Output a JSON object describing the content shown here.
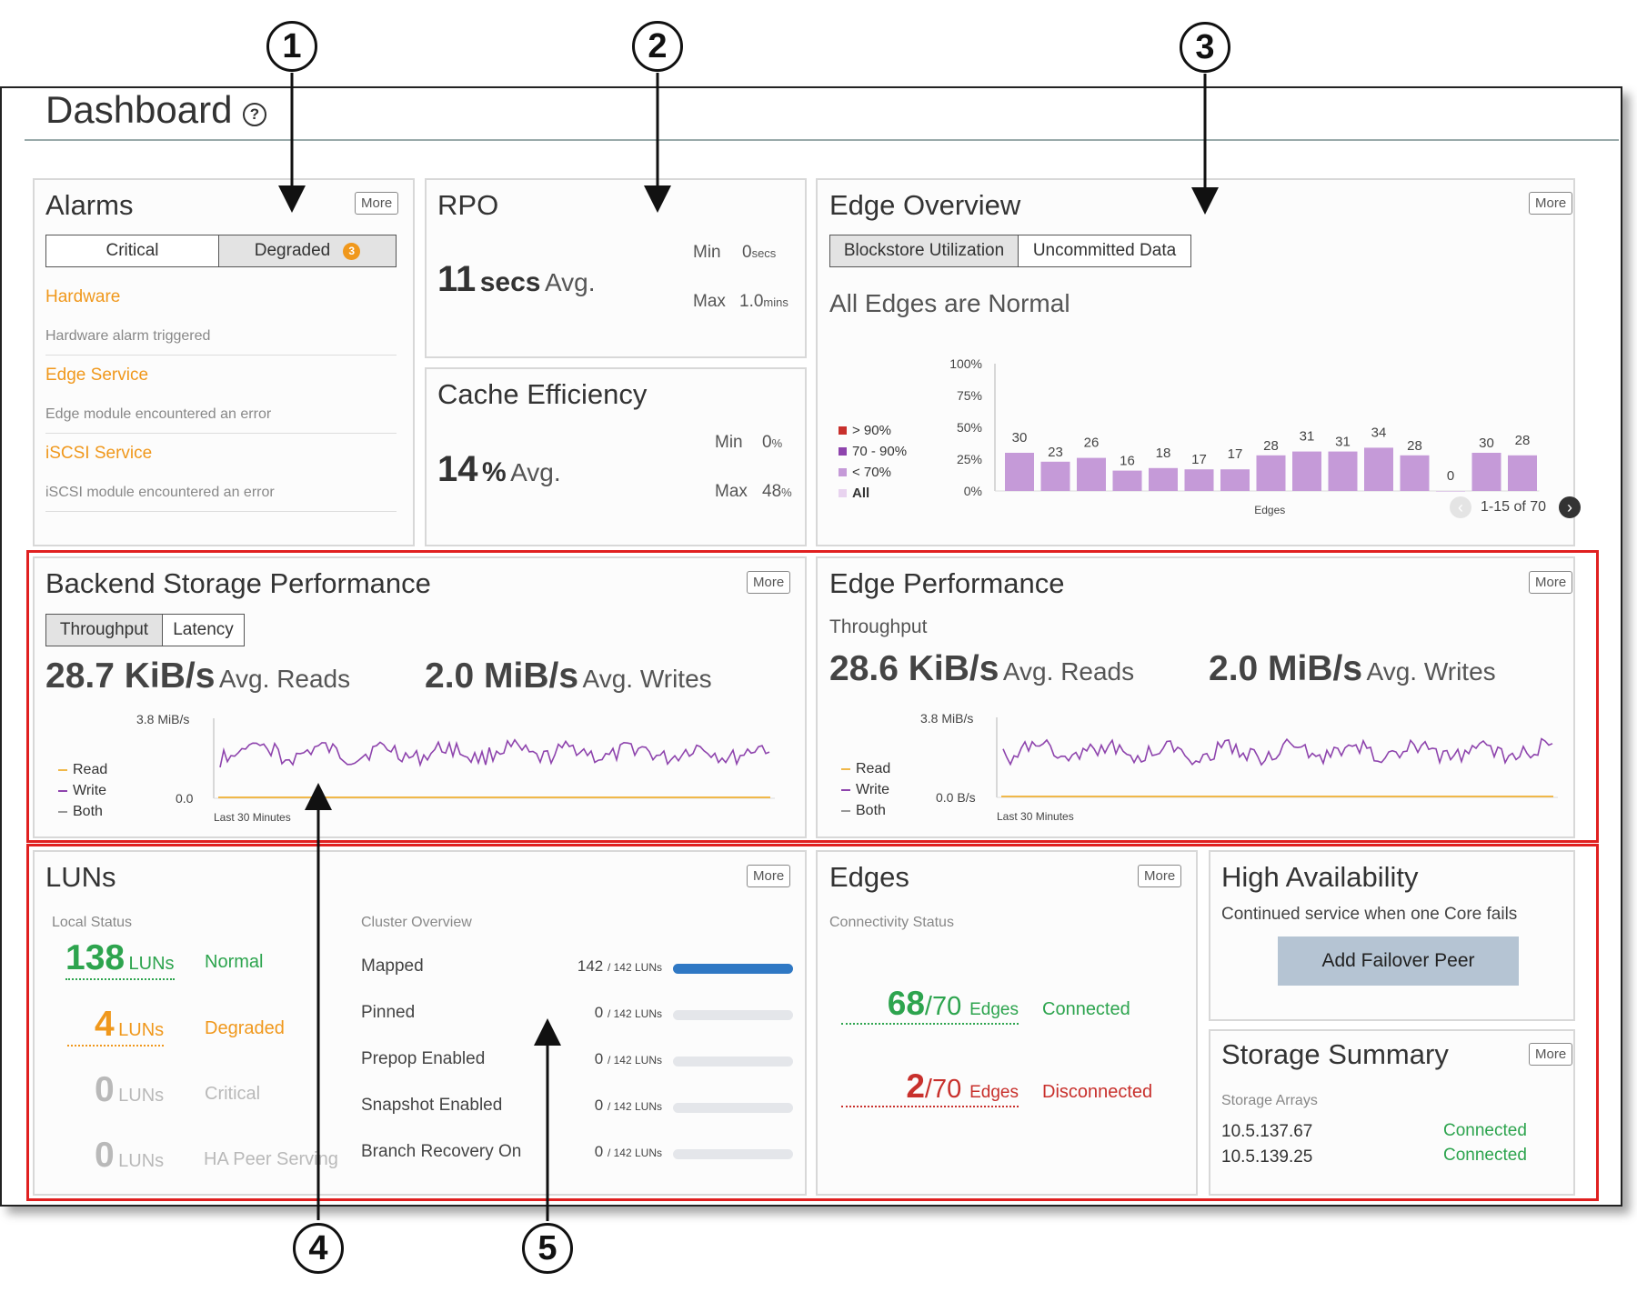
{
  "page": {
    "title": "Dashboard"
  },
  "callouts": [
    "1",
    "2",
    "3",
    "4",
    "5"
  ],
  "alarms": {
    "title": "Alarms",
    "more_label": "More",
    "tabs": [
      {
        "label": "Critical"
      },
      {
        "label": "Degraded",
        "badge": "3"
      }
    ],
    "items": [
      {
        "name": "Hardware",
        "description": "Hardware alarm triggered"
      },
      {
        "name": "Edge Service",
        "description": "Edge module encountered an error"
      },
      {
        "name": "iSCSI Service",
        "description": "iSCSI module encountered an error"
      }
    ]
  },
  "rpo": {
    "title": "RPO",
    "avg_value": "11",
    "avg_unit": "secs",
    "avg_label": "Avg.",
    "min_label": "Min",
    "min_value": "0",
    "min_unit": "secs",
    "max_label": "Max",
    "max_value": "1.0",
    "max_unit": "mins"
  },
  "cache": {
    "title": "Cache Efficiency",
    "avg_value": "14",
    "avg_unit": "%",
    "avg_label": "Avg.",
    "min_label": "Min",
    "min_value": "0",
    "min_unit": "%",
    "max_label": "Max",
    "max_value": "48",
    "max_unit": "%"
  },
  "edge_overview": {
    "title": "Edge Overview",
    "more_label": "More",
    "tabs": [
      "Blockstore Utilization",
      "Uncommitted Data"
    ],
    "status": "All Edges are Normal",
    "legend": [
      {
        "label": "> 90%",
        "color": "#c8302c"
      },
      {
        "label": "70 - 90%",
        "color": "#8e44ad"
      },
      {
        "label": "< 70%",
        "color": "#c59ad8"
      },
      {
        "label": "All",
        "color": "#e8d3ef"
      }
    ],
    "pagination": "1-15 of 70"
  },
  "chart_data": [
    {
      "type": "bar",
      "xlabel": "Edges",
      "ylabel": "",
      "ylim": [
        0,
        100
      ],
      "yticks": [
        "100%",
        "75%",
        "50%",
        "25%",
        "0%"
      ],
      "values": [
        30,
        23,
        26,
        16,
        18,
        17,
        17,
        28,
        31,
        31,
        34,
        28,
        0,
        30,
        28
      ],
      "bar_color": "#c59ad8"
    },
    {
      "type": "line",
      "title": "Backend Storage Performance",
      "ylabel_top": "3.8 MiB/s",
      "ylabel_bottom": "0.0",
      "xlabel": "Last 30 Minutes",
      "series": [
        {
          "name": "Read",
          "color": "#f0b84a"
        },
        {
          "name": "Write",
          "color": "#8e44ad"
        },
        {
          "name": "Both",
          "color": "#999999"
        }
      ]
    },
    {
      "type": "line",
      "title": "Edge Performance",
      "ylabel_top": "3.8 MiB/s",
      "ylabel_bottom": "0.0 B/s",
      "xlabel": "Last 30 Minutes",
      "series": [
        {
          "name": "Read",
          "color": "#f0b84a"
        },
        {
          "name": "Write",
          "color": "#8e44ad"
        },
        {
          "name": "Both",
          "color": "#999999"
        }
      ]
    }
  ],
  "backend": {
    "title": "Backend Storage Performance",
    "more_label": "More",
    "tabs": [
      "Throughput",
      "Latency"
    ],
    "reads_value": "28.7 KiB/s",
    "reads_label": "Avg. Reads",
    "writes_value": "2.0 MiB/s",
    "writes_label": "Avg. Writes"
  },
  "edge_perf": {
    "title": "Edge Performance",
    "more_label": "More",
    "subtitle": "Throughput",
    "reads_value": "28.6 KiB/s",
    "reads_label": "Avg. Reads",
    "writes_value": "2.0 MiB/s",
    "writes_label": "Avg. Writes"
  },
  "luns": {
    "title": "LUNs",
    "more_label": "More",
    "local_status_label": "Local Status",
    "local": [
      {
        "count": "138",
        "unit": "LUNs",
        "status": "Normal"
      },
      {
        "count": "4",
        "unit": "LUNs",
        "status": "Degraded"
      },
      {
        "count": "0",
        "unit": "LUNs",
        "status": "Critical"
      },
      {
        "count": "0",
        "unit": "LUNs",
        "status": "HA Peer Serving"
      }
    ],
    "cluster_label": "Cluster Overview",
    "cluster": [
      {
        "label": "Mapped",
        "count": "142",
        "total": "/ 142 LUNs",
        "fraction": 1.0
      },
      {
        "label": "Pinned",
        "count": "0",
        "total": "/ 142 LUNs",
        "fraction": 0
      },
      {
        "label": "Prepop Enabled",
        "count": "0",
        "total": "/ 142 LUNs",
        "fraction": 0
      },
      {
        "label": "Snapshot Enabled",
        "count": "0",
        "total": "/ 142 LUNs",
        "fraction": 0
      },
      {
        "label": "Branch Recovery On",
        "count": "0",
        "total": "/ 142 LUNs",
        "fraction": 0
      }
    ]
  },
  "edges": {
    "title": "Edges",
    "more_label": "More",
    "subtitle": "Connectivity Status",
    "connected": {
      "count": "68",
      "total": "/70",
      "unit": "Edges",
      "status": "Connected"
    },
    "disconnected": {
      "count": "2",
      "total": "/70",
      "unit": "Edges",
      "status": "Disconnected"
    }
  },
  "ha": {
    "title": "High Availability",
    "description": "Continued service when one Core fails",
    "button_label": "Add Failover Peer"
  },
  "storage": {
    "title": "Storage Summary",
    "more_label": "More",
    "subtitle": "Storage Arrays",
    "arrays": [
      {
        "ip": "10.5.137.67",
        "status": "Connected"
      },
      {
        "ip": "10.5.139.25",
        "status": "Connected"
      }
    ]
  }
}
